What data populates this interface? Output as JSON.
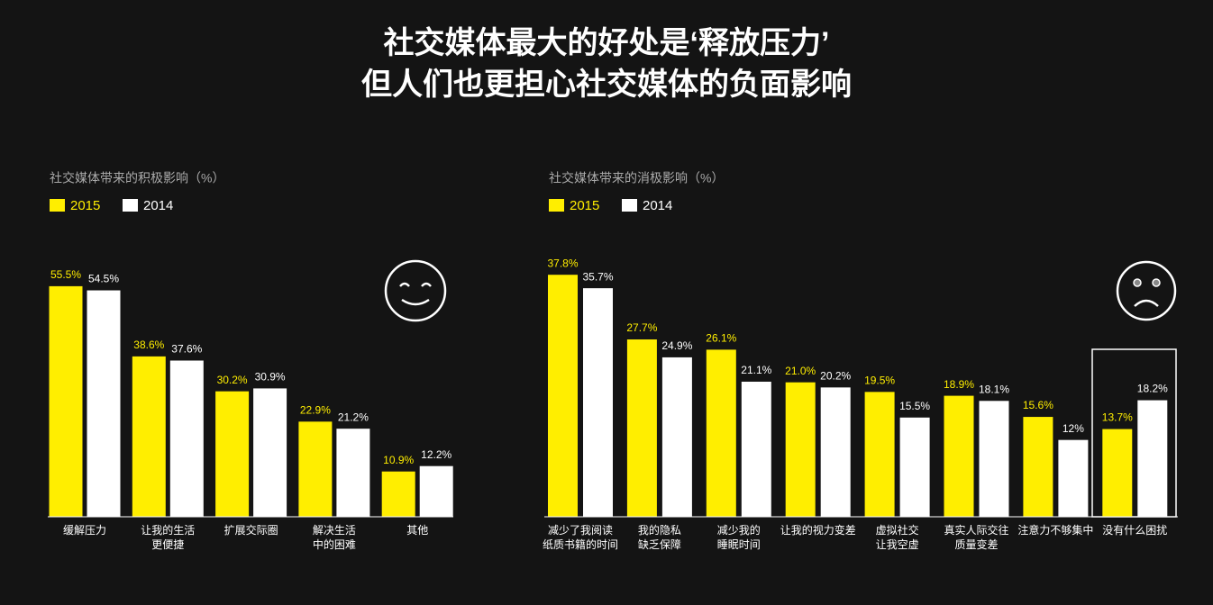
{
  "header": {
    "lines": [
      "社交媒体最大的好处是‘释放压力’",
      "但人们也更担心社交媒体的负面影响"
    ]
  },
  "chart_data": [
    {
      "type": "bar",
      "title": "社交媒体带来的积极影响（%）",
      "categories": [
        [
          "缓解压力"
        ],
        [
          "让我的生活",
          "更便捷"
        ],
        [
          "扩展交际圈"
        ],
        [
          "解决生活",
          "中的困难"
        ],
        [
          "其他"
        ]
      ],
      "series": [
        {
          "name": "2015",
          "color": "#ffee00",
          "values": [
            55.5,
            38.6,
            30.2,
            22.9,
            10.9
          ],
          "value_labels": [
            "55.5%",
            "38.6%",
            "30.2%",
            "22.9%",
            "10.9%"
          ]
        },
        {
          "name": "2014",
          "color": "#ffffff",
          "values": [
            54.5,
            37.6,
            30.9,
            21.2,
            12.2
          ],
          "value_labels": [
            "54.5%",
            "37.6%",
            "30.9%",
            "21.2%",
            "12.2%"
          ]
        }
      ],
      "ylim": [
        0,
        70
      ]
    },
    {
      "type": "bar",
      "title": "社交媒体带来的消极影响（%）",
      "categories": [
        [
          "减少了我阅读",
          "纸质书籍的时间"
        ],
        [
          "我的隐私",
          "缺乏保障"
        ],
        [
          "减少我的",
          "睡眠时间"
        ],
        [
          "让我的视力变差"
        ],
        [
          "虚拟社交",
          "让我空虚"
        ],
        [
          "真实人际交往",
          "质量变差"
        ],
        [
          "注意力不够集中"
        ],
        [
          "没有什么困扰"
        ]
      ],
      "series": [
        {
          "name": "2015",
          "color": "#ffee00",
          "values": [
            37.8,
            27.7,
            26.1,
            21.0,
            19.5,
            18.9,
            15.6,
            13.7
          ],
          "value_labels": [
            "37.8%",
            "27.7%",
            "26.1%",
            "21.0%",
            "19.5%",
            "18.9%",
            "15.6%",
            "13.7%"
          ]
        },
        {
          "name": "2014",
          "color": "#ffffff",
          "values": [
            35.7,
            24.9,
            21.1,
            20.2,
            15.5,
            18.1,
            12,
            18.2
          ],
          "value_labels": [
            "35.7%",
            "24.9%",
            "21.1%",
            "20.2%",
            "15.5%",
            "18.1%",
            "12%",
            "18.2%"
          ]
        }
      ],
      "ylim": [
        0,
        45
      ]
    }
  ]
}
